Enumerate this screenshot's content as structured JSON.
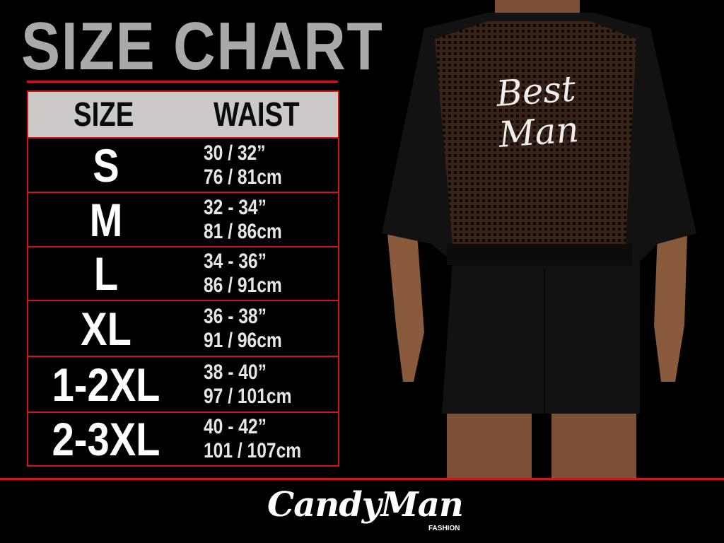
{
  "title": "SIZE CHART",
  "table": {
    "headers": [
      "SIZE",
      "WAIST"
    ],
    "rows": [
      {
        "size": "S",
        "in": "30 / 32”",
        "cm": "76 / 81cm"
      },
      {
        "size": "M",
        "in": "32 - 34”",
        "cm": "81 / 86cm"
      },
      {
        "size": "L",
        "in": "34 - 36”",
        "cm": "86 / 91cm"
      },
      {
        "size": "XL",
        "in": "36 - 38”",
        "cm": "91 / 96cm"
      },
      {
        "size": "1-2XL",
        "in": "38 - 40”",
        "cm": "97 / 101cm"
      },
      {
        "size": "2-3XL",
        "in": "40 - 42”",
        "cm": "101 / 107cm"
      }
    ]
  },
  "product": {
    "back_print": "Best Man"
  },
  "brand": {
    "name": "CandyMan",
    "sub": "FASHION"
  },
  "colors": {
    "accent": "#d0161b",
    "title": "#a9a9a9",
    "header_bg": "#cdc9c9"
  }
}
